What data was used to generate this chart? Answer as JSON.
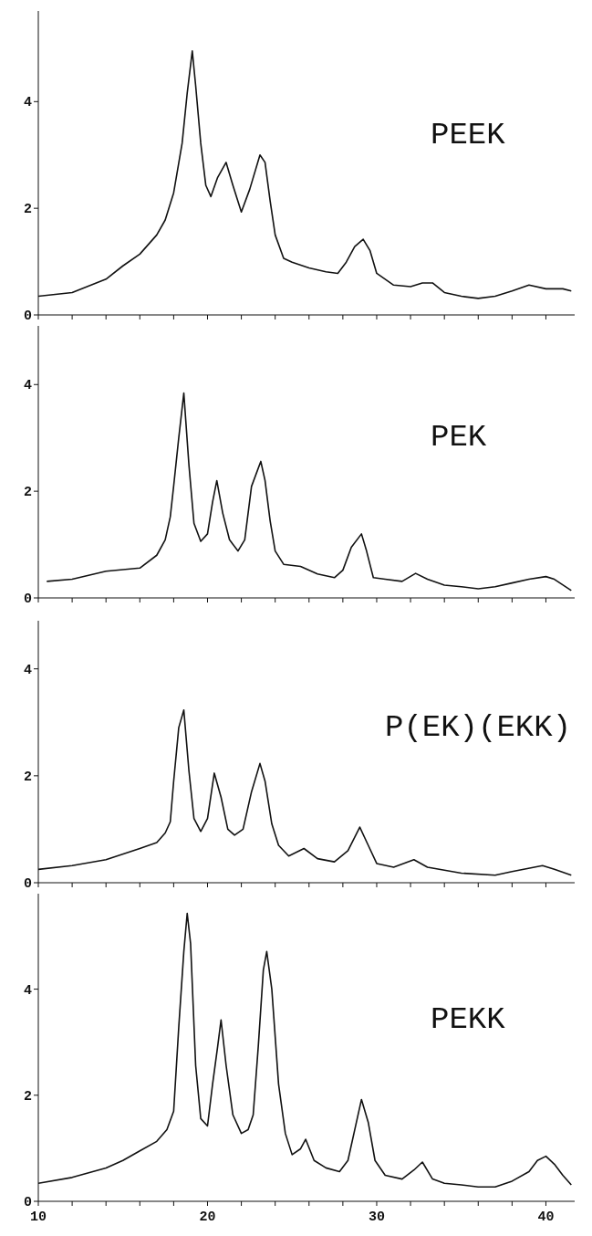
{
  "chart_data": [
    {
      "type": "line",
      "x": [
        10,
        12,
        14,
        15,
        16,
        17,
        17.5,
        18,
        18.5,
        18.8,
        19.1,
        19.3,
        19.6,
        19.9,
        20.2,
        20.6,
        21.1,
        21.5,
        22,
        22.5,
        23.1,
        23.4,
        23.7,
        24,
        24.5,
        25,
        26,
        27,
        27.7,
        28.2,
        28.7,
        29.2,
        29.6,
        30,
        31,
        32,
        32.7,
        33.3,
        34,
        35,
        36,
        37,
        38,
        39,
        40,
        41,
        41.5
      ],
      "series": [
        {
          "name": "PEEK",
          "color": "#111111",
          "values": [
            0.35,
            0.42,
            0.67,
            0.92,
            1.14,
            1.5,
            1.78,
            2.29,
            3.22,
            4.16,
            4.95,
            4.3,
            3.22,
            2.43,
            2.22,
            2.58,
            2.86,
            2.43,
            1.93,
            2.36,
            3.0,
            2.86,
            2.14,
            1.5,
            1.06,
            0.99,
            0.88,
            0.81,
            0.78,
            0.99,
            1.28,
            1.42,
            1.21,
            0.78,
            0.56,
            0.53,
            0.6,
            0.6,
            0.42,
            0.35,
            0.31,
            0.35,
            0.45,
            0.56,
            0.49,
            0.49,
            0.45
          ]
        }
      ],
      "xlim": [
        10,
        41.7
      ],
      "xticks": [
        10,
        {
          "value": 12,
          "label": null
        },
        {
          "value": 14,
          "label": null
        },
        {
          "value": 16,
          "label": null
        },
        {
          "value": 18,
          "label": null
        },
        20,
        {
          "value": 22,
          "label": null
        },
        {
          "value": 24,
          "label": null
        },
        {
          "value": 26,
          "label": null
        },
        {
          "value": 28,
          "label": null
        },
        30,
        {
          "value": 32,
          "label": null
        },
        {
          "value": 34,
          "label": null
        },
        {
          "value": 36,
          "label": null
        },
        {
          "value": 38,
          "label": null
        },
        40
      ],
      "ylim": [
        0,
        5.7
      ],
      "yticks": [
        0,
        2,
        4
      ],
      "tick_labels": "y",
      "grid": false,
      "legend": false,
      "marker": "none",
      "line_style": "solid"
    },
    {
      "type": "line",
      "x": [
        10.5,
        12,
        14,
        16,
        17,
        17.5,
        17.8,
        18,
        18.3,
        18.6,
        18.9,
        19.2,
        19.6,
        20,
        20.3,
        20.55,
        20.9,
        21.3,
        21.8,
        22.2,
        22.6,
        23.15,
        23.4,
        23.7,
        24,
        24.5,
        25.5,
        26.5,
        27.5,
        28,
        28.5,
        29.1,
        29.4,
        29.8,
        30.5,
        31.5,
        32.3,
        33,
        34,
        35,
        36,
        37,
        38,
        39,
        40,
        40.5,
        41.5
      ],
      "series": [
        {
          "name": "PEK",
          "color": "#111111",
          "values": [
            0.31,
            0.35,
            0.5,
            0.56,
            0.8,
            1.09,
            1.52,
            2.1,
            3.0,
            3.84,
            2.5,
            1.4,
            1.06,
            1.2,
            1.8,
            2.2,
            1.59,
            1.09,
            0.88,
            1.09,
            2.09,
            2.56,
            2.2,
            1.45,
            0.88,
            0.63,
            0.59,
            0.45,
            0.38,
            0.52,
            0.95,
            1.2,
            0.88,
            0.38,
            0.35,
            0.31,
            0.46,
            0.35,
            0.24,
            0.21,
            0.17,
            0.21,
            0.28,
            0.35,
            0.4,
            0.35,
            0.14
          ]
        }
      ],
      "xlim": [
        10,
        41.7
      ],
      "xticks": [
        10,
        {
          "value": 12,
          "label": null
        },
        {
          "value": 14,
          "label": null
        },
        {
          "value": 16,
          "label": null
        },
        {
          "value": 18,
          "label": null
        },
        20,
        {
          "value": 22,
          "label": null
        },
        {
          "value": 24,
          "label": null
        },
        {
          "value": 26,
          "label": null
        },
        {
          "value": 28,
          "label": null
        },
        30,
        {
          "value": 32,
          "label": null
        },
        {
          "value": 34,
          "label": null
        },
        {
          "value": 36,
          "label": null
        },
        {
          "value": 38,
          "label": null
        },
        40
      ],
      "ylim": [
        0,
        5.1
      ],
      "yticks": [
        0,
        2,
        4
      ],
      "tick_labels": "y",
      "grid": false,
      "legend": false,
      "marker": "none",
      "line_style": "solid"
    },
    {
      "type": "line",
      "x": [
        10,
        12,
        14,
        16,
        17,
        17.5,
        17.8,
        18,
        18.3,
        18.6,
        18.9,
        19.2,
        19.6,
        20,
        20.4,
        20.8,
        21.2,
        21.6,
        22.1,
        22.6,
        23.1,
        23.4,
        23.8,
        24.2,
        24.8,
        25.7,
        26.5,
        27.5,
        28.3,
        29,
        29.5,
        30,
        31,
        32.2,
        33,
        35,
        37,
        38,
        39.8,
        40.5,
        41.5
      ],
      "series": [
        {
          "name": "P(EK)(EKK)",
          "color": "#111111",
          "values": [
            0.25,
            0.32,
            0.43,
            0.64,
            0.75,
            0.93,
            1.14,
            1.9,
            2.9,
            3.23,
            2.1,
            1.2,
            0.96,
            1.2,
            2.05,
            1.6,
            1.0,
            0.89,
            1.0,
            1.7,
            2.23,
            1.9,
            1.1,
            0.7,
            0.5,
            0.64,
            0.45,
            0.39,
            0.6,
            1.04,
            0.7,
            0.36,
            0.29,
            0.43,
            0.29,
            0.18,
            0.14,
            0.21,
            0.32,
            0.25,
            0.14
          ]
        }
      ],
      "xlim": [
        10,
        41.7
      ],
      "xticks": [
        10,
        {
          "value": 12,
          "label": null
        },
        {
          "value": 14,
          "label": null
        },
        {
          "value": 16,
          "label": null
        },
        {
          "value": 18,
          "label": null
        },
        20,
        {
          "value": 22,
          "label": null
        },
        {
          "value": 24,
          "label": null
        },
        {
          "value": 26,
          "label": null
        },
        {
          "value": 28,
          "label": null
        },
        30,
        {
          "value": 32,
          "label": null
        },
        {
          "value": 34,
          "label": null
        },
        {
          "value": 36,
          "label": null
        },
        {
          "value": 38,
          "label": null
        },
        40
      ],
      "ylim": [
        0,
        4.9
      ],
      "yticks": [
        0,
        2,
        4
      ],
      "tick_labels": "y",
      "grid": false,
      "legend": false,
      "marker": "none",
      "line_style": "solid"
    },
    {
      "type": "line",
      "x": [
        10,
        12,
        14,
        15,
        16,
        17,
        17.6,
        18,
        18.3,
        18.6,
        18.8,
        19.0,
        19.3,
        19.6,
        20,
        20.3,
        20.6,
        20.8,
        21.1,
        21.5,
        22,
        22.4,
        22.7,
        23.0,
        23.3,
        23.5,
        23.8,
        24.2,
        24.6,
        25,
        25.5,
        25.8,
        26.3,
        27,
        27.8,
        28.3,
        28.8,
        29.1,
        29.5,
        29.9,
        30.5,
        31.5,
        32.2,
        32.7,
        33.3,
        34,
        35,
        36,
        37,
        38,
        39,
        39.5,
        40,
        40.5,
        41,
        41.5
      ],
      "series": [
        {
          "name": "PEKK",
          "color": "#111111",
          "values": [
            0.34,
            0.45,
            0.63,
            0.77,
            0.95,
            1.13,
            1.35,
            1.7,
            3.28,
            4.71,
            5.43,
            4.86,
            2.56,
            1.56,
            1.42,
            2.21,
            2.92,
            3.42,
            2.56,
            1.63,
            1.28,
            1.35,
            1.63,
            2.92,
            4.36,
            4.71,
            4.0,
            2.21,
            1.28,
            0.88,
            0.99,
            1.17,
            0.77,
            0.63,
            0.56,
            0.77,
            1.49,
            1.92,
            1.49,
            0.77,
            0.49,
            0.42,
            0.59,
            0.74,
            0.42,
            0.34,
            0.31,
            0.27,
            0.27,
            0.38,
            0.56,
            0.77,
            0.85,
            0.7,
            0.49,
            0.31
          ]
        }
      ],
      "xlim": [
        10,
        41.7
      ],
      "xticks": [
        10,
        {
          "value": 12,
          "label": null
        },
        {
          "value": 14,
          "label": null
        },
        {
          "value": 16,
          "label": null
        },
        {
          "value": 18,
          "label": null
        },
        20,
        {
          "value": 22,
          "label": null
        },
        {
          "value": 24,
          "label": null
        },
        {
          "value": 26,
          "label": null
        },
        {
          "value": 28,
          "label": null
        },
        30,
        {
          "value": 32,
          "label": null
        },
        {
          "value": 34,
          "label": null
        },
        {
          "value": 36,
          "label": null
        },
        {
          "value": 38,
          "label": null
        },
        40
      ],
      "ylim": [
        0,
        5.8
      ],
      "yticks": [
        0,
        2,
        4
      ],
      "grid": false,
      "legend": false,
      "marker": "none",
      "line_style": "solid"
    }
  ]
}
